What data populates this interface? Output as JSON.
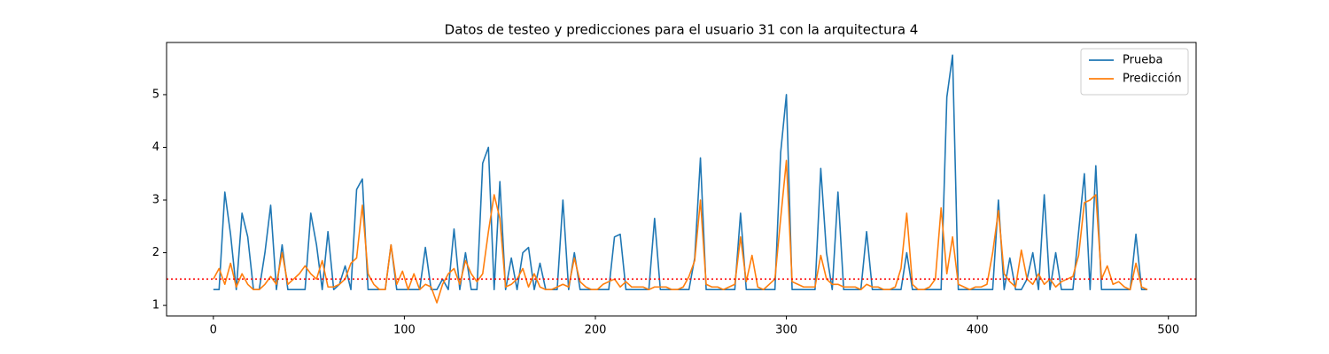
{
  "chart_data": {
    "type": "line",
    "title": "Datos de testeo y predicciones para el usuario 31 con la arquitectura 4",
    "x": [
      0,
      3,
      6,
      9,
      12,
      15,
      18,
      21,
      24,
      27,
      30,
      33,
      36,
      39,
      42,
      45,
      48,
      51,
      54,
      57,
      60,
      63,
      66,
      69,
      72,
      75,
      78,
      81,
      84,
      87,
      90,
      93,
      96,
      99,
      102,
      105,
      108,
      111,
      114,
      117,
      120,
      123,
      126,
      129,
      132,
      135,
      138,
      141,
      144,
      147,
      150,
      153,
      156,
      159,
      162,
      165,
      168,
      171,
      174,
      177,
      180,
      183,
      186,
      189,
      192,
      195,
      198,
      201,
      204,
      207,
      210,
      213,
      216,
      219,
      222,
      225,
      228,
      231,
      234,
      237,
      240,
      243,
      246,
      249,
      252,
      255,
      258,
      261,
      264,
      267,
      270,
      273,
      276,
      279,
      282,
      285,
      288,
      291,
      294,
      297,
      300,
      303,
      306,
      309,
      312,
      315,
      318,
      321,
      324,
      327,
      330,
      333,
      336,
      339,
      342,
      345,
      348,
      351,
      354,
      357,
      360,
      363,
      366,
      369,
      372,
      375,
      378,
      381,
      384,
      387,
      390,
      393,
      396,
      399,
      402,
      405,
      408,
      411,
      414,
      417,
      420,
      423,
      426,
      429,
      432,
      435,
      438,
      441,
      444,
      447,
      450,
      453,
      456,
      459,
      462,
      465,
      468,
      471,
      474,
      477,
      480,
      483,
      486,
      489
    ],
    "series": [
      {
        "name": "Prueba",
        "color": "#1f77b4",
        "values": [
          1.3,
          1.3,
          3.15,
          2.35,
          1.3,
          2.75,
          2.3,
          1.3,
          1.3,
          2.0,
          2.9,
          1.3,
          2.15,
          1.3,
          1.3,
          1.3,
          1.3,
          2.75,
          2.15,
          1.3,
          2.4,
          1.3,
          1.4,
          1.75,
          1.3,
          3.2,
          3.4,
          1.3,
          1.3,
          1.3,
          1.3,
          2.15,
          1.3,
          1.3,
          1.3,
          1.3,
          1.3,
          2.1,
          1.3,
          1.3,
          1.5,
          1.3,
          2.45,
          1.3,
          2.0,
          1.3,
          1.3,
          3.7,
          4.0,
          1.3,
          3.35,
          1.3,
          1.9,
          1.3,
          2.0,
          2.1,
          1.3,
          1.8,
          1.3,
          1.3,
          1.3,
          3.0,
          1.3,
          2.0,
          1.3,
          1.3,
          1.3,
          1.3,
          1.3,
          1.3,
          2.3,
          2.35,
          1.3,
          1.3,
          1.3,
          1.3,
          1.3,
          2.65,
          1.3,
          1.3,
          1.3,
          1.3,
          1.3,
          1.3,
          1.9,
          3.8,
          1.3,
          1.3,
          1.3,
          1.3,
          1.3,
          1.3,
          2.75,
          1.3,
          1.3,
          1.3,
          1.3,
          1.3,
          1.3,
          3.9,
          5.0,
          1.3,
          1.3,
          1.3,
          1.3,
          1.3,
          3.6,
          2.0,
          1.3,
          3.15,
          1.3,
          1.3,
          1.3,
          1.3,
          2.4,
          1.3,
          1.3,
          1.3,
          1.3,
          1.3,
          1.3,
          2.0,
          1.3,
          1.3,
          1.3,
          1.3,
          1.3,
          1.3,
          4.95,
          5.75,
          1.3,
          1.3,
          1.3,
          1.3,
          1.3,
          1.3,
          1.3,
          3.0,
          1.3,
          1.9,
          1.3,
          1.3,
          1.5,
          2.0,
          1.3,
          3.1,
          1.3,
          2.0,
          1.3,
          1.3,
          1.3,
          2.4,
          3.5,
          1.3,
          3.65,
          1.3,
          1.3,
          1.3,
          1.3,
          1.3,
          1.3,
          2.35,
          1.3,
          1.3
        ]
      },
      {
        "name": "Predicción",
        "color": "#ff7f0e",
        "values": [
          1.5,
          1.7,
          1.4,
          1.8,
          1.35,
          1.6,
          1.4,
          1.3,
          1.3,
          1.4,
          1.55,
          1.4,
          2.0,
          1.4,
          1.5,
          1.6,
          1.75,
          1.6,
          1.5,
          1.85,
          1.35,
          1.35,
          1.4,
          1.5,
          1.8,
          1.9,
          2.9,
          1.6,
          1.4,
          1.3,
          1.3,
          2.15,
          1.4,
          1.65,
          1.3,
          1.6,
          1.3,
          1.4,
          1.35,
          1.05,
          1.4,
          1.6,
          1.7,
          1.4,
          1.85,
          1.6,
          1.45,
          1.6,
          2.4,
          3.1,
          2.65,
          1.35,
          1.4,
          1.5,
          1.7,
          1.35,
          1.6,
          1.35,
          1.3,
          1.3,
          1.35,
          1.4,
          1.35,
          1.9,
          1.45,
          1.35,
          1.3,
          1.3,
          1.4,
          1.45,
          1.5,
          1.35,
          1.45,
          1.35,
          1.35,
          1.35,
          1.3,
          1.35,
          1.35,
          1.35,
          1.3,
          1.3,
          1.35,
          1.55,
          1.85,
          3.0,
          1.4,
          1.35,
          1.35,
          1.3,
          1.35,
          1.4,
          2.3,
          1.45,
          1.95,
          1.35,
          1.3,
          1.4,
          1.5,
          2.65,
          3.75,
          1.45,
          1.4,
          1.35,
          1.35,
          1.35,
          1.95,
          1.5,
          1.4,
          1.4,
          1.35,
          1.35,
          1.35,
          1.3,
          1.4,
          1.35,
          1.35,
          1.3,
          1.3,
          1.35,
          1.7,
          2.75,
          1.4,
          1.3,
          1.3,
          1.35,
          1.5,
          2.85,
          1.6,
          2.3,
          1.4,
          1.35,
          1.3,
          1.35,
          1.35,
          1.4,
          2.0,
          2.8,
          1.6,
          1.45,
          1.35,
          2.05,
          1.5,
          1.4,
          1.6,
          1.4,
          1.5,
          1.35,
          1.45,
          1.5,
          1.55,
          1.95,
          2.95,
          3.0,
          3.1,
          1.5,
          1.75,
          1.4,
          1.45,
          1.35,
          1.3,
          1.8,
          1.35,
          1.3
        ]
      }
    ],
    "hline": {
      "value": 1.5,
      "color": "#ff0000",
      "style": "dotted"
    },
    "xlim": [
      -24.5,
      514.5
    ],
    "xticks": [
      0,
      100,
      200,
      300,
      400,
      500
    ],
    "ylim": [
      0.8,
      5.99
    ],
    "yticks": [
      1,
      2,
      3,
      4,
      5
    ],
    "legend": "upper right"
  }
}
